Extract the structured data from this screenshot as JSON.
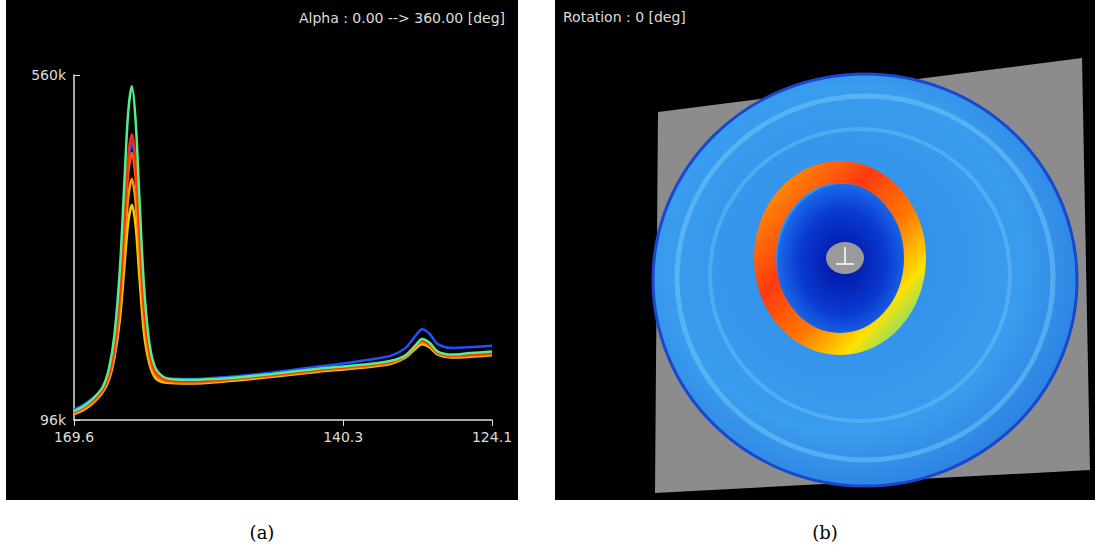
{
  "chart_data": {
    "type": "line",
    "title": "Alpha : 0.00 --> 360.00 [deg]",
    "caption": "(a)",
    "x": [
      169.6,
      168.5,
      167.5,
      166.5,
      165.8,
      165.2,
      164.6,
      164.1,
      163.7,
      163.3,
      162.9,
      162.5,
      162.0,
      161.4,
      160.7,
      159.5,
      157,
      153,
      148,
      143,
      140.3,
      137,
      135,
      133.5,
      132.5,
      131.7,
      130.9,
      130,
      128.5,
      126.5,
      124.1
    ],
    "series": [
      {
        "color": "#2050ff",
        "values": [
          110000,
          117000,
          126000,
          137000,
          157000,
          193000,
          265000,
          365000,
          440000,
          470000,
          437000,
          352000,
          250000,
          188000,
          160000,
          152000,
          151000,
          154000,
          160000,
          168000,
          172000,
          178000,
          183000,
          193000,
          208000,
          218000,
          212000,
          198000,
          193000,
          194000,
          196000
        ]
      },
      {
        "color": "#f0d000",
        "values": [
          104000,
          110000,
          119000,
          133000,
          150000,
          180000,
          232000,
          305000,
          362000,
          385000,
          358000,
          292000,
          215000,
          172000,
          152000,
          146000,
          145000,
          148000,
          154000,
          161000,
          164000,
          168000,
          172000,
          180000,
          191000,
          198000,
          194000,
          184000,
          180000,
          181000,
          183000
        ]
      },
      {
        "color": "#ff9900",
        "values": [
          105000,
          111000,
          120000,
          135000,
          152000,
          185000,
          245000,
          330000,
          395000,
          420000,
          390000,
          318000,
          230000,
          178000,
          155000,
          147000,
          146000,
          149000,
          155000,
          162000,
          165000,
          169000,
          173000,
          181000,
          193000,
          200000,
          196000,
          185000,
          181000,
          182000,
          184000
        ]
      },
      {
        "color": "#ff5a00",
        "values": [
          106000,
          113000,
          122000,
          136000,
          155000,
          190000,
          260000,
          355000,
          428000,
          455000,
          422000,
          342000,
          245000,
          185000,
          158000,
          149000,
          147000,
          150000,
          156000,
          163000,
          166000,
          170000,
          174000,
          182000,
          195000,
          202000,
          197000,
          186000,
          182000,
          183000,
          185000
        ]
      },
      {
        "color": "#ff2a10",
        "values": [
          107000,
          114000,
          123000,
          137000,
          158000,
          195000,
          270000,
          375000,
          450000,
          480000,
          445000,
          360000,
          255000,
          190000,
          160000,
          150000,
          148000,
          151000,
          157000,
          164000,
          167000,
          171000,
          175000,
          183000,
          196000,
          203000,
          198000,
          187000,
          183000,
          184000,
          186000
        ]
      },
      {
        "color": "#50f08a",
        "values": [
          108000,
          115000,
          125000,
          140000,
          165000,
          210000,
          300000,
          420000,
          510000,
          545000,
          500000,
          400000,
          280000,
          200000,
          165000,
          152000,
          150000,
          152000,
          158000,
          165000,
          168000,
          172000,
          176000,
          183000,
          195000,
          205000,
          200000,
          188000,
          184000,
          186000,
          188000
        ]
      }
    ],
    "xlim": [
      169.6,
      124.1
    ],
    "xticks": [
      169.6,
      140.3,
      124.1
    ],
    "ylim": [
      96000,
      560000
    ],
    "yticks": [
      {
        "value": 96000,
        "label": "96k"
      },
      {
        "value": 560000,
        "label": "560k"
      }
    ],
    "grid": false
  },
  "image": {
    "title": "Rotation : 0 [deg]",
    "caption": "(b)"
  }
}
